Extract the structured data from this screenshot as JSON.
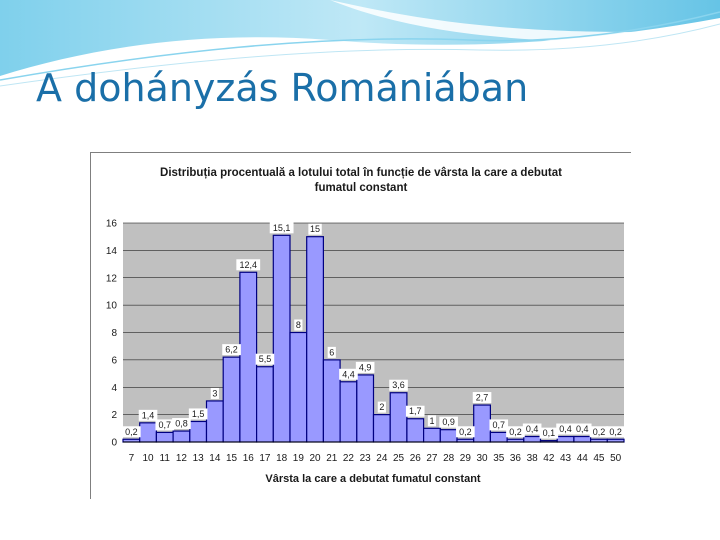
{
  "slide": {
    "title": "A dohányzás Romániában"
  },
  "colors": {
    "title": "#1a6fa8",
    "bar_fill": "#9999ff",
    "bar_stroke": "#000080",
    "plot_bg": "#c0c0c0"
  },
  "chart_data": {
    "type": "bar",
    "title_lines": [
      "Distribuția procentuală a lotului total în funcție de vârsta la care a debutat",
      "fumatul constant"
    ],
    "xlabel": "Vârsta la care a debutat fumatul constant",
    "ylabel": "",
    "ylim": [
      0,
      16
    ],
    "yticks": [
      0,
      2,
      4,
      6,
      8,
      10,
      12,
      14,
      16
    ],
    "grid": true,
    "legend": "none",
    "categories": [
      "7",
      "10",
      "11",
      "12",
      "13",
      "14",
      "15",
      "16",
      "17",
      "18",
      "19",
      "20",
      "21",
      "22",
      "23",
      "24",
      "25",
      "26",
      "27",
      "28",
      "29",
      "30",
      "35",
      "36",
      "38",
      "42",
      "43",
      "44",
      "45",
      "50"
    ],
    "values": [
      0.2,
      1.4,
      0.7,
      0.8,
      1.5,
      3,
      6.2,
      12.4,
      5.5,
      15.1,
      8,
      15,
      6,
      4.4,
      4.9,
      2,
      3.6,
      1.7,
      1,
      0.9,
      0.2,
      2.7,
      0.7,
      0.2,
      0.4,
      0.1,
      0.4,
      0.4,
      0.2,
      0.2
    ],
    "value_labels": [
      "0,2",
      "1,4",
      "0,7",
      "0,8",
      "1,5",
      "3",
      "6,2",
      "12,4",
      "5,5",
      "15,1",
      "8",
      "15",
      "6",
      "4,4",
      "4,9",
      "2",
      "3,6",
      "1,7",
      "1",
      "0,9",
      "0,2",
      "2,7",
      "0,7",
      "0,2",
      "0,4",
      "0,1",
      "0,4",
      "0,4",
      "0,2",
      "0,2"
    ]
  }
}
